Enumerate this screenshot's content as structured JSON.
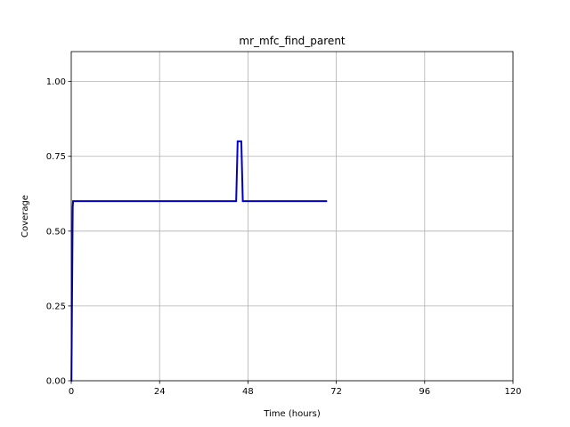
{
  "chart_data": {
    "type": "line",
    "title": "mr_mfc_find_parent",
    "xlabel": "Time (hours)",
    "ylabel": "Coverage",
    "xlim": [
      0,
      120
    ],
    "ylim": [
      0,
      1.1
    ],
    "x_ticks": [
      0,
      24,
      48,
      72,
      96,
      120
    ],
    "x_tick_labels": [
      "0",
      "24",
      "48",
      "72",
      "96",
      "120"
    ],
    "y_ticks": [
      0,
      0.25,
      0.5,
      0.75,
      1.0
    ],
    "y_tick_labels": [
      "0.00",
      "0.25",
      "0.50",
      "0.75",
      "1.00"
    ],
    "grid": true,
    "line_color": "#0000cc",
    "series": [
      {
        "x": [
          0,
          0.05,
          0.4,
          0.5,
          44.8,
          45.2,
          46.2,
          46.6,
          47.0,
          48.0,
          69.5
        ],
        "y": [
          0.0,
          0.0,
          0.58,
          0.6,
          0.6,
          0.8,
          0.8,
          0.6,
          0.6,
          0.6,
          0.6
        ]
      }
    ]
  }
}
